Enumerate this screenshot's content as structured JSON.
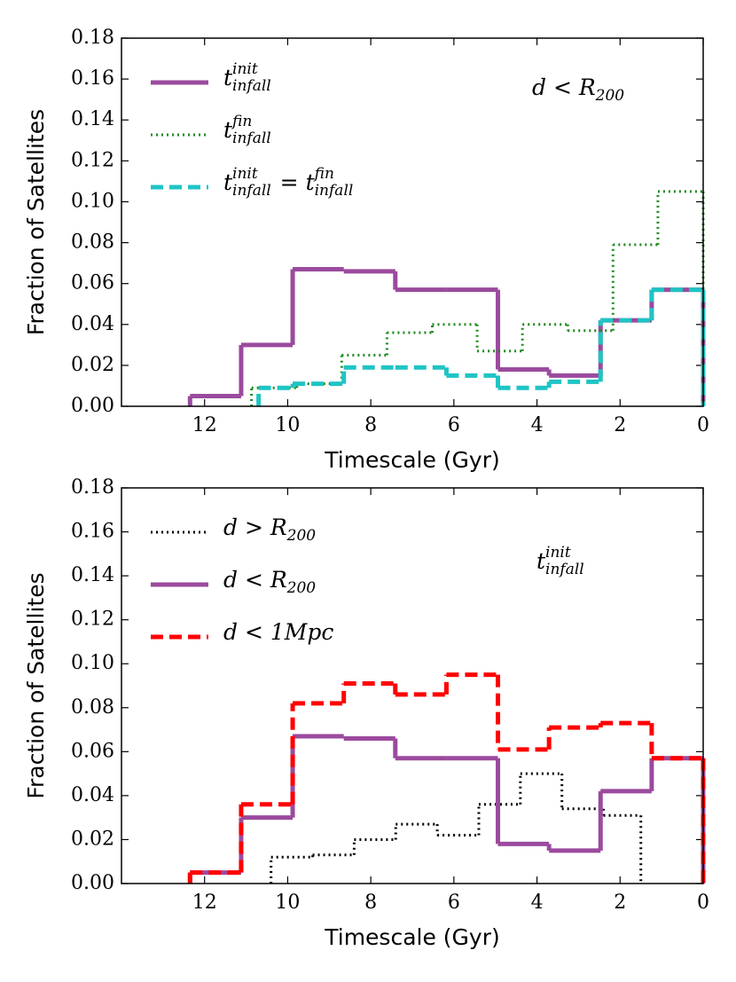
{
  "chart_data": [
    {
      "type": "histogram",
      "xlabel": "Timescale (Gyr)",
      "ylabel": "Fraction of Satellites",
      "annotation": "d < R_{200}",
      "legend": "upper left",
      "xlim": [
        14,
        0
      ],
      "ylim": [
        0,
        0.18
      ],
      "xticks": [
        12,
        10,
        8,
        6,
        4,
        2,
        0
      ],
      "yticks": [
        {
          "value": 0,
          "label": "0.00"
        },
        {
          "value": 0.02,
          "label": "0.02"
        },
        {
          "value": 0.04,
          "label": "0.04"
        },
        {
          "value": 0.06,
          "label": "0.06"
        },
        {
          "value": 0.08,
          "label": "0.08"
        },
        {
          "value": 0.1,
          "label": "0.10"
        },
        {
          "value": 0.12,
          "label": "0.12"
        },
        {
          "value": 0.14,
          "label": "0.14"
        },
        {
          "value": 0.16,
          "label": "0.16"
        },
        {
          "value": 0.18,
          "label": "0.18"
        }
      ],
      "series": [
        {
          "name": "t_{infall}^{init}",
          "color": "#9b4a9e",
          "style": "solid",
          "bins": [
            12.35,
            11.12,
            9.88,
            8.65,
            7.41,
            6.18,
            4.94,
            3.71,
            2.47,
            1.24,
            0
          ],
          "values": [
            0.005,
            0.03,
            0.067,
            0.066,
            0.057,
            0.057,
            0.018,
            0.015,
            0.042,
            0.057
          ]
        },
        {
          "name": "t_{infall}^{fin}",
          "color": "#1e8a1e",
          "style": "dotted",
          "bins": [
            10.87,
            9.78,
            8.7,
            7.61,
            6.52,
            5.44,
            4.35,
            3.26,
            2.17,
            1.09,
            0
          ],
          "values": [
            0.009,
            0.011,
            0.025,
            0.036,
            0.04,
            0.027,
            0.04,
            0.037,
            0.079,
            0.105
          ]
        },
        {
          "name": "t_{infall}^{init} = t_{infall}^{fin}",
          "color": "#1fc4c4",
          "style": "dashed",
          "bins": [
            10.7,
            9.88,
            8.65,
            7.41,
            6.18,
            4.94,
            3.71,
            2.47,
            1.24,
            0
          ],
          "values": [
            0.009,
            0.011,
            0.019,
            0.019,
            0.015,
            0.009,
            0.012,
            0.042,
            0.057
          ]
        }
      ]
    },
    {
      "type": "histogram",
      "xlabel": "Timescale (Gyr)",
      "ylabel": "Fraction of Satellites",
      "annotation": "t_{infall}^{init}",
      "legend": "upper left",
      "xlim": [
        14,
        0
      ],
      "ylim": [
        0,
        0.18
      ],
      "xticks": [
        12,
        10,
        8,
        6,
        4,
        2,
        0
      ],
      "yticks": [
        {
          "value": 0,
          "label": "0.00"
        },
        {
          "value": 0.02,
          "label": "0.02"
        },
        {
          "value": 0.04,
          "label": "0.04"
        },
        {
          "value": 0.06,
          "label": "0.06"
        },
        {
          "value": 0.08,
          "label": "0.08"
        },
        {
          "value": 0.1,
          "label": "0.10"
        },
        {
          "value": 0.12,
          "label": "0.12"
        },
        {
          "value": 0.14,
          "label": "0.14"
        },
        {
          "value": 0.16,
          "label": "0.16"
        },
        {
          "value": 0.18,
          "label": "0.18"
        }
      ],
      "series": [
        {
          "name": "d > R_{200}",
          "color": "#000000",
          "style": "dotted",
          "bins": [
            10.4,
            9.4,
            8.4,
            7.4,
            6.4,
            5.4,
            4.4,
            3.4,
            2.4,
            1.5
          ],
          "values": [
            0.012,
            0.013,
            0.02,
            0.027,
            0.022,
            0.036,
            0.05,
            0.034,
            0.031
          ]
        },
        {
          "name": "d < R_{200}",
          "color": "#9b4a9e",
          "style": "solid",
          "bins": [
            12.35,
            11.12,
            9.88,
            8.65,
            7.41,
            6.18,
            4.94,
            3.71,
            2.47,
            1.24,
            0
          ],
          "values": [
            0.005,
            0.03,
            0.067,
            0.066,
            0.057,
            0.057,
            0.018,
            0.015,
            0.042,
            0.057
          ]
        },
        {
          "name": "d < 1Mpc",
          "color": "#ff0000",
          "style": "dashed",
          "bins": [
            12.35,
            11.12,
            9.88,
            8.65,
            7.41,
            6.18,
            4.94,
            3.71,
            2.47,
            1.24,
            0
          ],
          "values": [
            0.005,
            0.036,
            0.082,
            0.091,
            0.086,
            0.095,
            0.061,
            0.071,
            0.073,
            0.057
          ]
        }
      ]
    }
  ]
}
